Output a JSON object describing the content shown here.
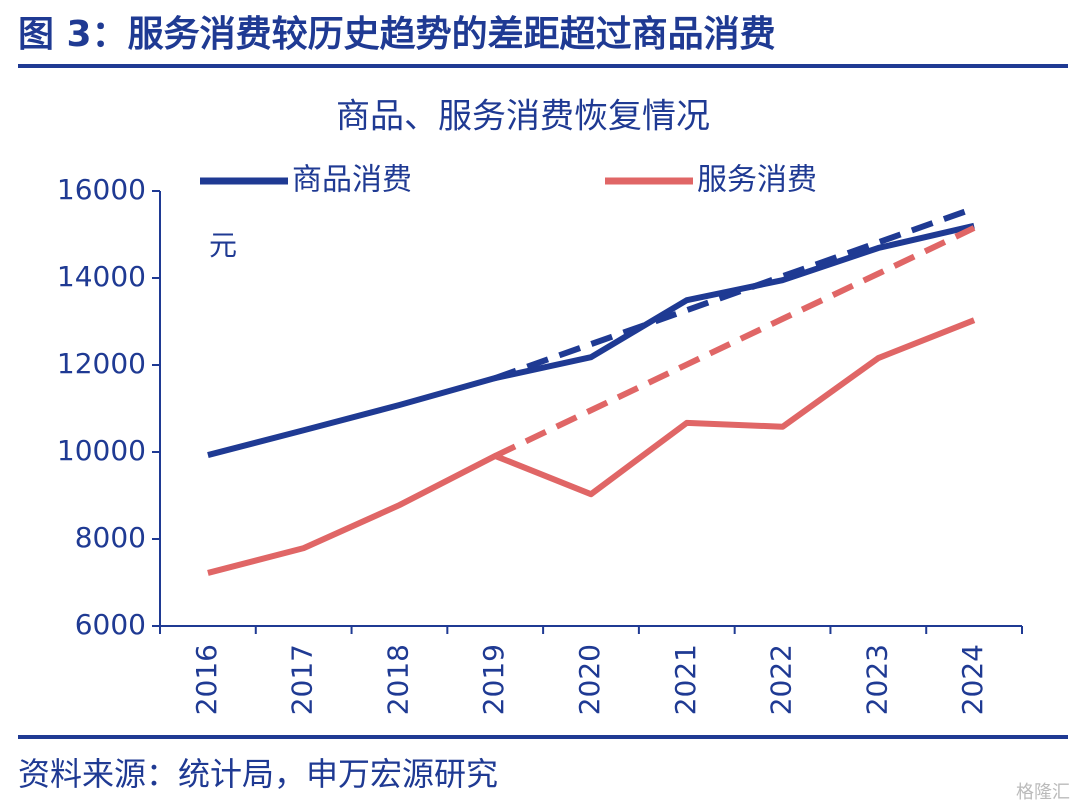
{
  "header": {
    "title": "图 3：服务消费较历史趋势的差距超过商品消费"
  },
  "chart_data": {
    "type": "line",
    "title": "商品、服务消费恢复情况",
    "y_unit": "元",
    "categories": [
      "2016",
      "2017",
      "2018",
      "2019",
      "2020",
      "2021",
      "2022",
      "2023",
      "2024"
    ],
    "series": [
      {
        "name": "商品消费",
        "color": "#1f3a93",
        "values": [
          9930,
          10500,
          11080,
          11700,
          12180,
          13490,
          13950,
          14690,
          15200
        ]
      },
      {
        "color": "#1f3a93",
        "dash": true,
        "values": [
          null,
          null,
          null,
          11700,
          12480,
          13260,
          14040,
          14820,
          15600
        ]
      },
      {
        "name": "服务消费",
        "color": "#e06666",
        "values": [
          7220,
          7790,
          8780,
          9910,
          9030,
          10670,
          10580,
          12160,
          13030
        ]
      },
      {
        "color": "#e06666",
        "dash": true,
        "values": [
          null,
          null,
          null,
          9910,
          10960,
          12010,
          13060,
          14100,
          15150
        ]
      }
    ],
    "ylim": [
      6000,
      16000
    ],
    "yticks": [
      6000,
      8000,
      10000,
      12000,
      14000,
      16000
    ],
    "grid": false
  },
  "footer": {
    "source": "资料来源：统计局，申万宏源研究",
    "watermark": "格隆汇"
  }
}
